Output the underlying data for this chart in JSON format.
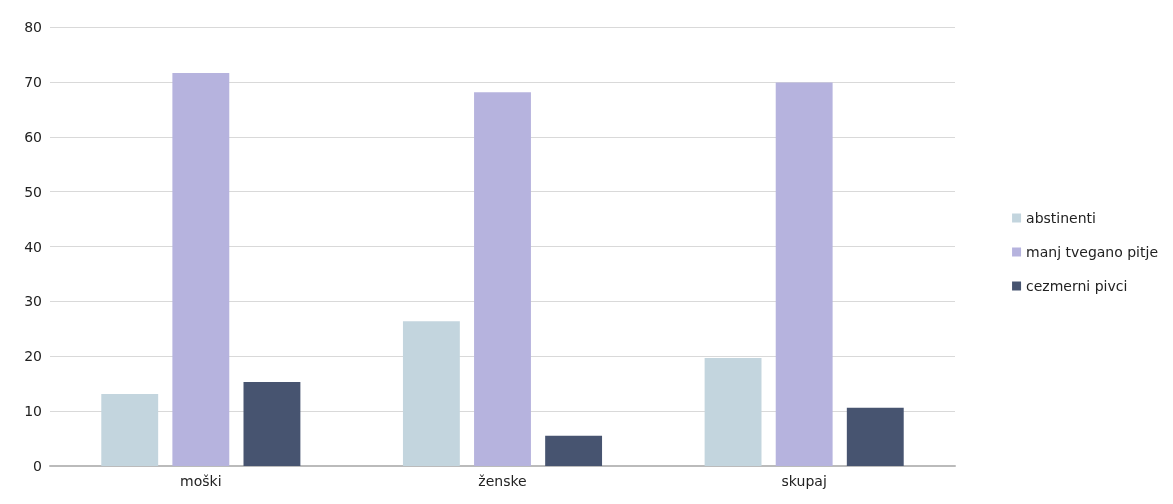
{
  "chart_data": {
    "type": "bar",
    "categories": [
      "moški",
      "ženske",
      "skupaj"
    ],
    "series": [
      {
        "name": "abstinenti",
        "color": "#c3d5de",
        "values": [
          13.1,
          26.4,
          19.7
        ]
      },
      {
        "name": "manj tvegano pitje",
        "color": "#b6b3de",
        "values": [
          71.6,
          68.1,
          69.9
        ]
      },
      {
        "name": "cezmerni pivci",
        "color": "#475470",
        "values": [
          15.3,
          5.5,
          10.6
        ]
      }
    ],
    "ylim": [
      0,
      80
    ],
    "yticks": [
      0,
      10,
      20,
      30,
      40,
      50,
      60,
      70,
      80
    ],
    "grid": true,
    "legend": "right"
  }
}
